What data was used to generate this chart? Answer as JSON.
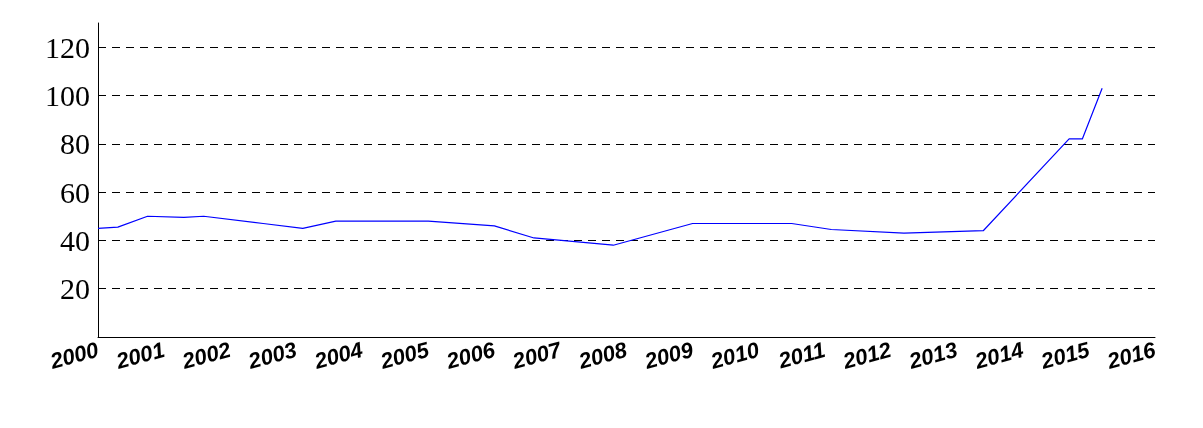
{
  "chart_data": {
    "type": "line",
    "x": [
      2000,
      2000.3,
      2000.75,
      2001.3,
      2001.6,
      2002.5,
      2003.1,
      2003.6,
      2005,
      2006,
      2006.6,
      2007.8,
      2009,
      2010.5,
      2011.1,
      2012.2,
      2013.4,
      2014.7,
      2014.9,
      2015.2
    ],
    "series": [
      {
        "color": "#0000ff",
        "values": [
          45,
          45.5,
          50,
          49.5,
          50,
          47,
          45,
          48,
          48,
          46,
          41,
          38,
          47,
          47,
          44.5,
          43,
          44,
          82,
          82,
          103
        ]
      }
    ],
    "xlim": [
      2000,
      2016
    ],
    "xticks": [
      2000,
      2001,
      2002,
      2003,
      2004,
      2005,
      2006,
      2007,
      2008,
      2009,
      2010,
      2011,
      2012,
      2013,
      2014,
      2015,
      2016
    ],
    "ylim": [
      0,
      130
    ],
    "yticks": [
      20,
      40,
      60,
      80,
      100,
      120
    ],
    "grid": "y",
    "marker": "none",
    "line_style": "solid"
  }
}
